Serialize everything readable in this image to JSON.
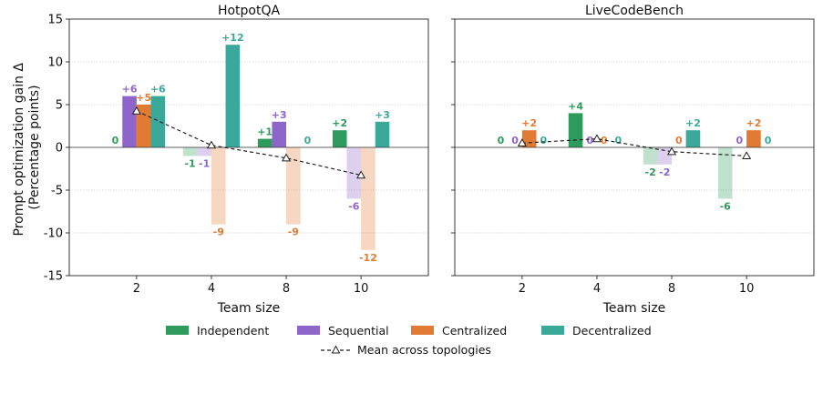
{
  "colors": {
    "Independent": "#2e9a5c",
    "Sequential": "#8e65c8",
    "Centralized": "#e17b33",
    "Decentralized": "#3ba99a",
    "mean": "#222222"
  },
  "ylabel_lines": [
    "Prompt optimization gain Δ",
    "(Percentage points)"
  ],
  "legend": {
    "items": [
      "Independent",
      "Sequential",
      "Centralized",
      "Decentralized"
    ],
    "mean_label": "Mean across topologies"
  },
  "chart_data": [
    {
      "type": "bar",
      "title": "HotpotQA",
      "xlabel": "Team size",
      "ylabel": "Prompt optimization gain Δ (Percentage points)",
      "categories": [
        "2",
        "4",
        "8",
        "10"
      ],
      "ylim": [
        -15,
        15
      ],
      "yticks": [
        -15,
        -10,
        -5,
        0,
        5,
        10,
        15
      ],
      "series": [
        {
          "name": "Independent",
          "values": [
            0,
            -1,
            1,
            2
          ],
          "labels": [
            "0",
            "-1",
            "+1",
            "+2"
          ]
        },
        {
          "name": "Sequential",
          "values": [
            6,
            -1,
            3,
            -6
          ],
          "labels": [
            "+6",
            "-1",
            "+3",
            "-6"
          ]
        },
        {
          "name": "Centralized",
          "values": [
            5,
            -9,
            -9,
            -12
          ],
          "labels": [
            "+5",
            "-9",
            "-9",
            "-12"
          ]
        },
        {
          "name": "Decentralized",
          "values": [
            6,
            12,
            0,
            3
          ],
          "labels": [
            "+6",
            "+12",
            "0",
            "+3"
          ]
        }
      ],
      "mean": {
        "name": "Mean across topologies",
        "values": [
          4.25,
          0.25,
          -1.25,
          -3.25
        ]
      }
    },
    {
      "type": "bar",
      "title": "LiveCodeBench",
      "xlabel": "Team size",
      "categories": [
        "2",
        "4",
        "8",
        "10"
      ],
      "ylim": [
        -15,
        15
      ],
      "yticks": [
        -15,
        -10,
        -5,
        0,
        5,
        10,
        15
      ],
      "series": [
        {
          "name": "Independent",
          "values": [
            0,
            4,
            -2,
            -6
          ],
          "labels": [
            "0",
            "+4",
            "-2",
            "-6"
          ]
        },
        {
          "name": "Sequential",
          "values": [
            0,
            0,
            -2,
            0
          ],
          "labels": [
            "0",
            "0",
            "-2",
            "0"
          ]
        },
        {
          "name": "Centralized",
          "values": [
            2,
            0,
            0,
            2
          ],
          "labels": [
            "+2",
            "0",
            "0",
            "+2"
          ]
        },
        {
          "name": "Decentralized",
          "values": [
            0,
            0,
            2,
            0
          ],
          "labels": [
            "0",
            "0",
            "+2",
            "0"
          ]
        }
      ],
      "mean": {
        "name": "Mean across topologies",
        "values": [
          0.5,
          1.0,
          -0.5,
          -1.0
        ]
      }
    }
  ]
}
